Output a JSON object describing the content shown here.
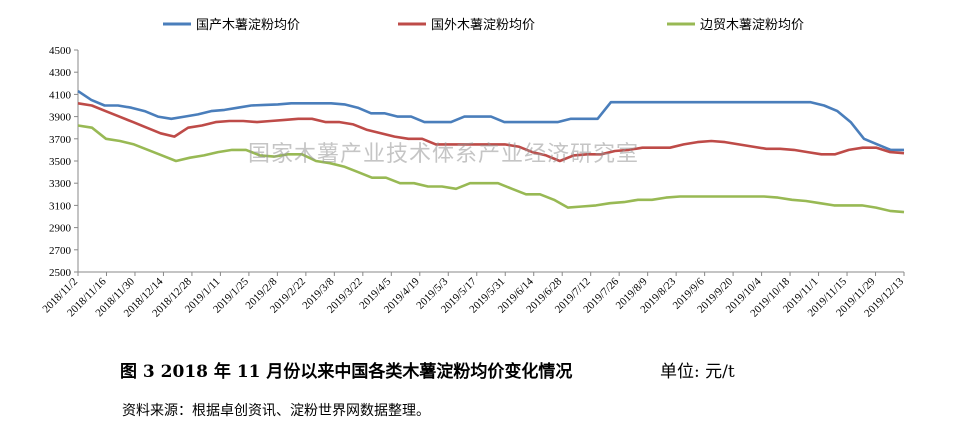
{
  "chart_data": {
    "type": "line",
    "ylim": [
      2500,
      4500
    ],
    "yticks": [
      2500,
      2700,
      2900,
      3100,
      3300,
      3500,
      3700,
      3900,
      4100,
      4300,
      4500
    ],
    "grid": false,
    "legend_position": "top",
    "xtick_labels": [
      "2018/11/2",
      "2018/11/16",
      "2018/11/30",
      "2018/12/14",
      "2018/12/28",
      "2019/1/11",
      "2019/1/25",
      "2019/2/8",
      "2019/2/22",
      "2019/3/8",
      "2019/3/22",
      "2019/4/5",
      "2019/4/19",
      "2019/5/3",
      "2019/5/17",
      "2019/5/31",
      "2019/6/14",
      "2019/6/28",
      "2019/7/12",
      "2019/7/26",
      "2019/8/9",
      "2019/8/23",
      "2019/9/6",
      "2019/9/20",
      "2019/10/4",
      "2019/10/18",
      "2019/11/1",
      "2019/11/15",
      "2019/11/29",
      "2019/12/13"
    ],
    "series": [
      {
        "name": "国产木薯淀粉均价",
        "color": "#4a7ebb",
        "values": [
          4130,
          4050,
          4000,
          4000,
          3980,
          3950,
          3900,
          3880,
          3900,
          3920,
          3950,
          3960,
          3980,
          4000,
          4005,
          4010,
          4020,
          4020,
          4020,
          4020,
          4010,
          3980,
          3930,
          3930,
          3900,
          3900,
          3850,
          3850,
          3850,
          3900,
          3900,
          3900,
          3850,
          3850,
          3850,
          3850,
          3850,
          3880,
          3880,
          3880,
          4030,
          4030,
          4030,
          4030,
          4030,
          4030,
          4030,
          4030,
          4030,
          4030,
          4030,
          4030,
          4030,
          4030,
          4030,
          4030,
          4000,
          3950,
          3850,
          3700,
          3650,
          3600,
          3600
        ]
      },
      {
        "name": "国外木薯淀粉均价",
        "color": "#be4b48",
        "values": [
          4020,
          4000,
          3950,
          3900,
          3850,
          3800,
          3750,
          3720,
          3800,
          3820,
          3850,
          3860,
          3860,
          3850,
          3860,
          3870,
          3880,
          3880,
          3850,
          3850,
          3830,
          3780,
          3750,
          3720,
          3700,
          3700,
          3650,
          3650,
          3650,
          3650,
          3650,
          3650,
          3630,
          3580,
          3550,
          3500,
          3550,
          3560,
          3560,
          3590,
          3600,
          3620,
          3620,
          3620,
          3650,
          3670,
          3680,
          3670,
          3650,
          3630,
          3610,
          3610,
          3600,
          3580,
          3560,
          3560,
          3600,
          3620,
          3620,
          3580,
          3570
        ]
      },
      {
        "name": "边贸木薯淀粉均价",
        "color": "#98b954",
        "values": [
          3820,
          3800,
          3700,
          3680,
          3650,
          3600,
          3550,
          3500,
          3530,
          3550,
          3580,
          3600,
          3600,
          3550,
          3540,
          3560,
          3560,
          3500,
          3480,
          3450,
          3400,
          3350,
          3350,
          3300,
          3300,
          3270,
          3270,
          3250,
          3300,
          3300,
          3300,
          3250,
          3200,
          3200,
          3150,
          3080,
          3090,
          3100,
          3120,
          3130,
          3150,
          3150,
          3170,
          3180,
          3180,
          3180,
          3180,
          3180,
          3180,
          3180,
          3170,
          3150,
          3140,
          3120,
          3100,
          3100,
          3100,
          3080,
          3050,
          3040
        ]
      }
    ]
  },
  "watermark": "国家木薯产业技术体系产业经济研究室",
  "caption": "图 3   2018 年 11 月份以来中国各类木薯淀粉均价变化情况",
  "unit": "单位:  元/t",
  "source": "资料来源：根据卓创资讯、淀粉世界网数据整理。"
}
